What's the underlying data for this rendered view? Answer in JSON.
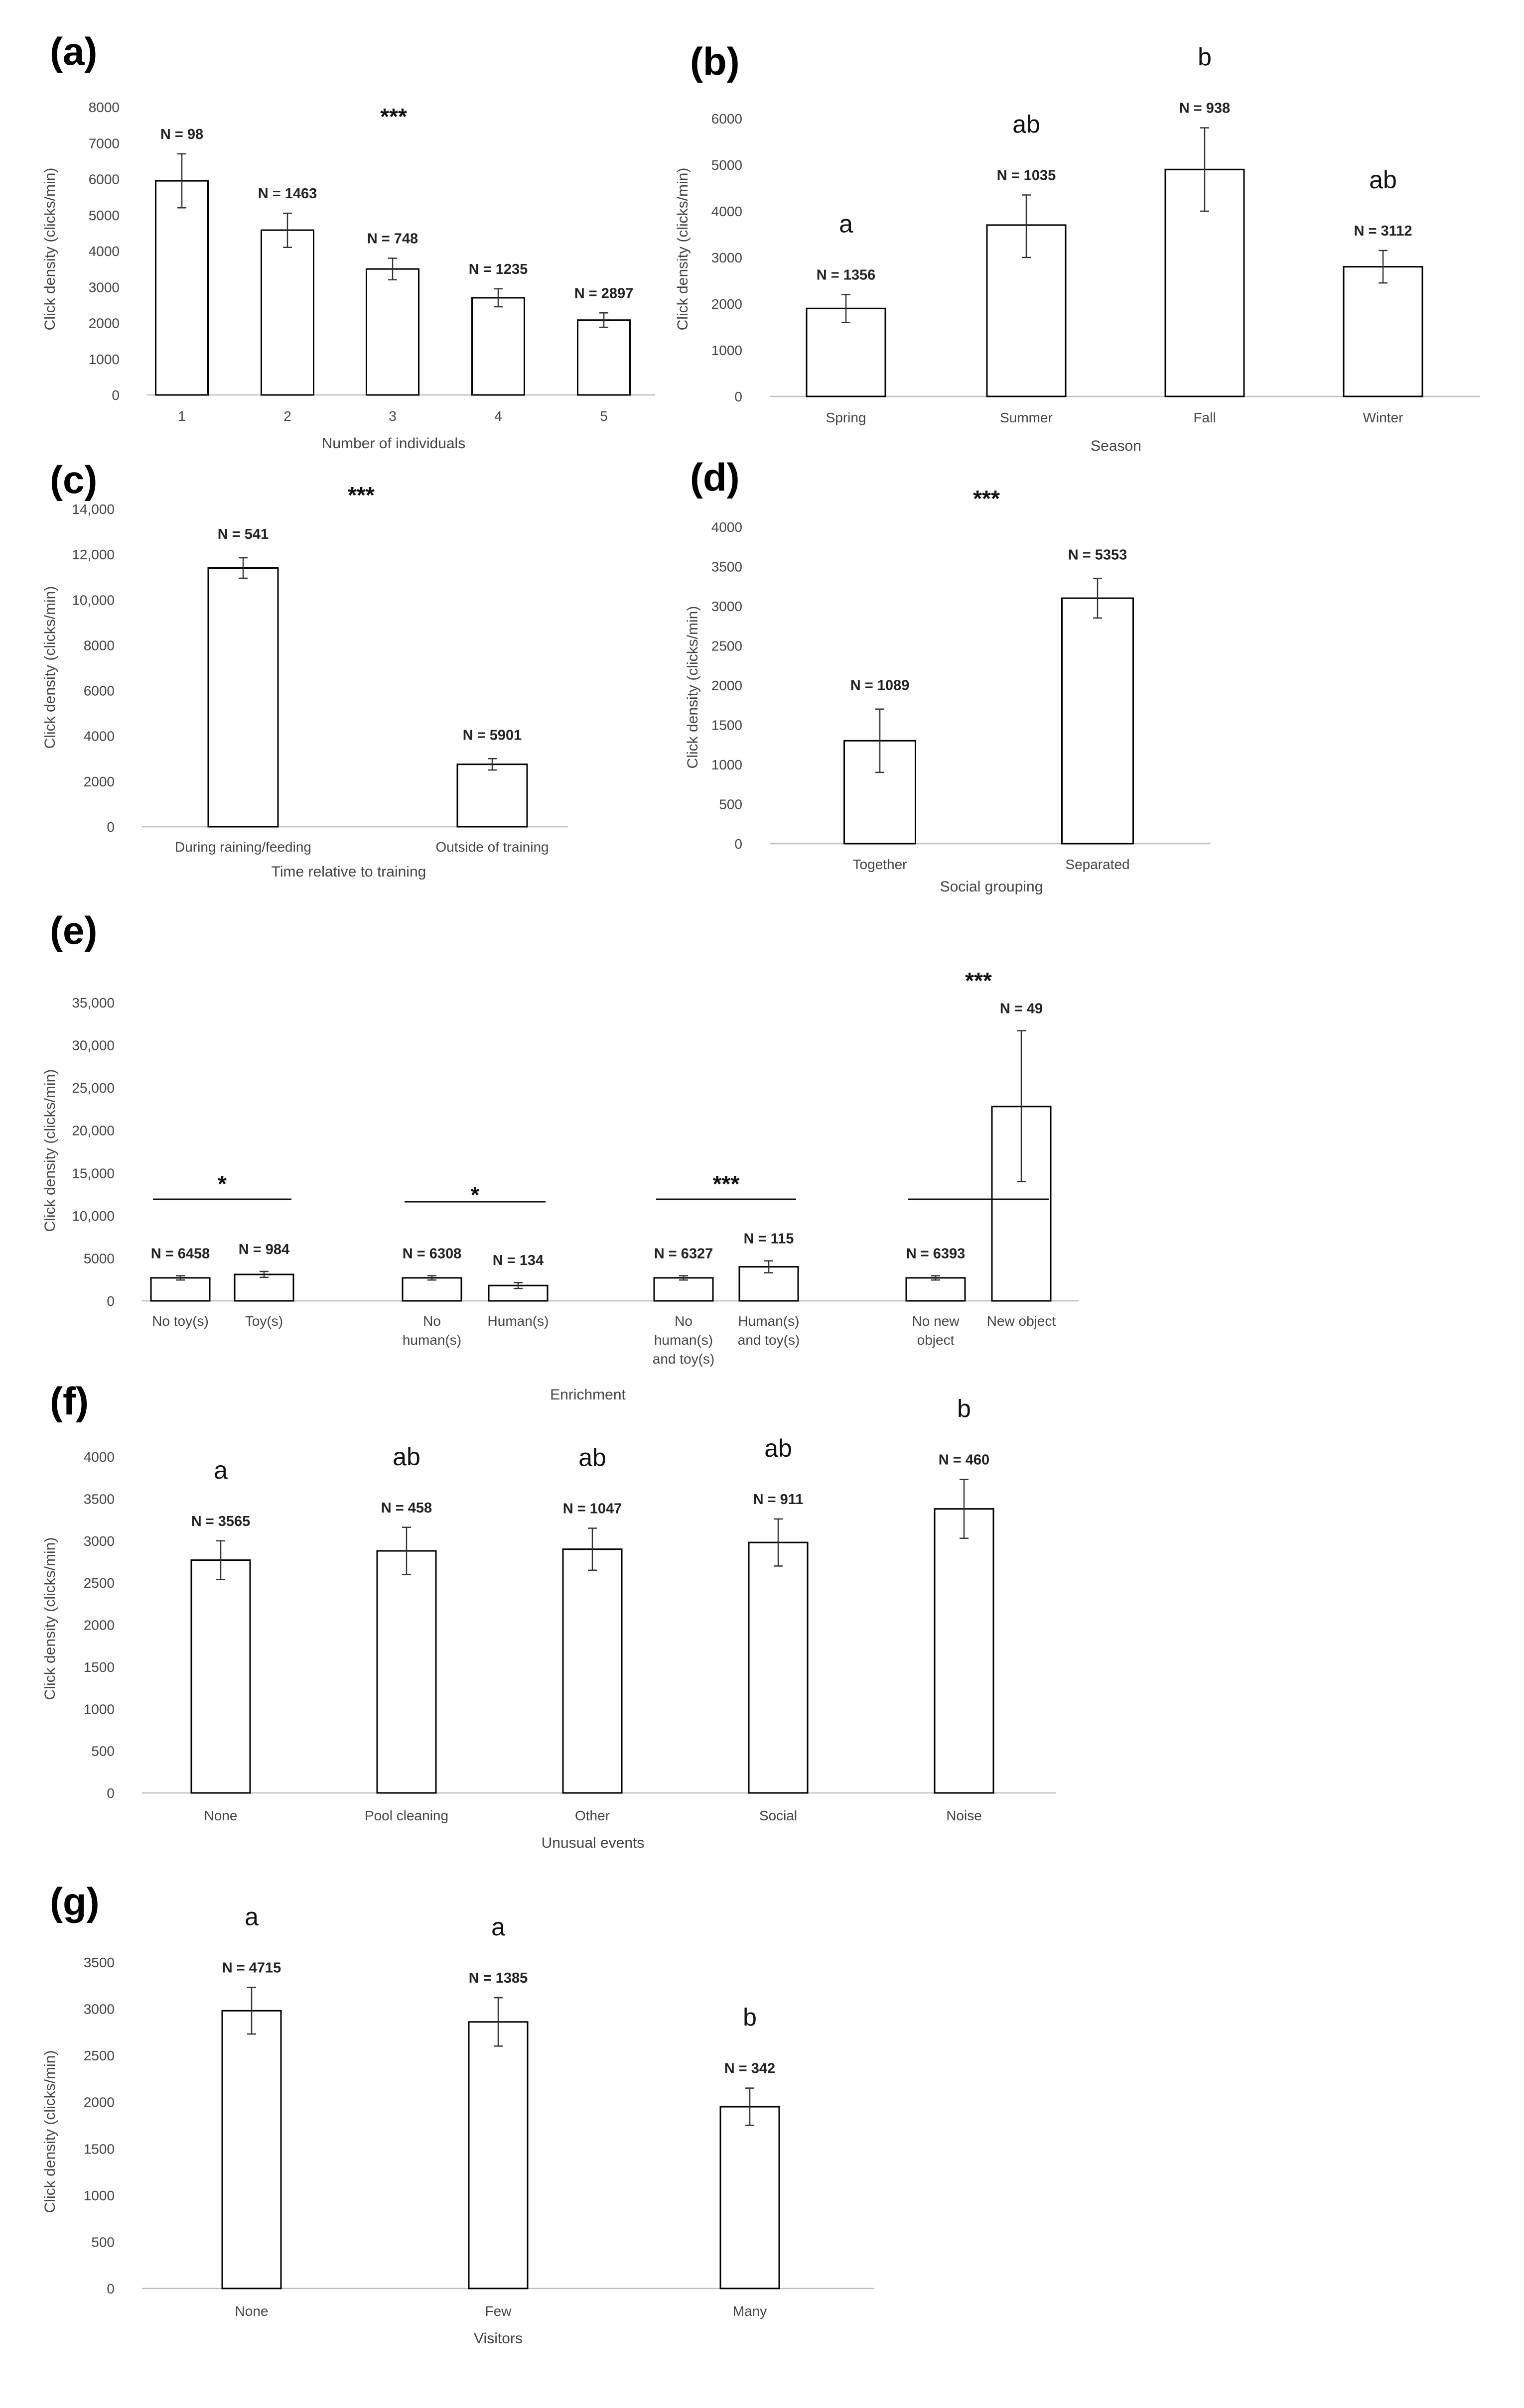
{
  "chart_data": [
    {
      "panel": "(a)",
      "type": "bar",
      "ylabel": "Click density (clicks/min)",
      "xlabel": "Number of individuals",
      "ylim": [
        0,
        8000
      ],
      "yticks": [
        0,
        1000,
        2000,
        3000,
        4000,
        5000,
        6000,
        7000,
        8000
      ],
      "categories": [
        "1",
        "2",
        "3",
        "4",
        "5"
      ],
      "values": [
        5950,
        4580,
        3500,
        2700,
        2080
      ],
      "err_low": [
        5200,
        4100,
        3200,
        2450,
        1880
      ],
      "err_high": [
        6700,
        5050,
        3800,
        2950,
        2280
      ],
      "n_labels": [
        "N = 98",
        "N = 1463",
        "N = 748",
        "N = 1235",
        "N = 2897"
      ],
      "sig_letters": [],
      "stars": [
        {
          "text": "***",
          "from": null,
          "to": null
        }
      ],
      "grid": false,
      "legend": "none"
    },
    {
      "panel": "(b)",
      "type": "bar",
      "ylabel": "Click density (clicks/min)",
      "xlabel": "Season",
      "ylim": [
        0,
        6000
      ],
      "yticks": [
        0,
        1000,
        2000,
        3000,
        4000,
        5000,
        6000
      ],
      "categories": [
        "Spring",
        "Summer",
        "Fall",
        "Winter"
      ],
      "values": [
        1900,
        3700,
        4900,
        2800
      ],
      "err_low": [
        1600,
        3000,
        4000,
        2450
      ],
      "err_high": [
        2200,
        4350,
        5800,
        3150
      ],
      "n_labels": [
        "N = 1356",
        "N = 1035",
        "N = 938",
        "N = 3112"
      ],
      "sig_letters": [
        "a",
        "ab",
        "b",
        "ab"
      ],
      "stars": [],
      "grid": false,
      "legend": "none"
    },
    {
      "panel": "(c)",
      "type": "bar",
      "ylabel": "Click density (clicks/min)",
      "xlabel": "Time relative to training",
      "ylim": [
        0,
        14000
      ],
      "yticks": [
        0,
        2000,
        4000,
        6000,
        8000,
        10000,
        12000,
        14000
      ],
      "ytick_labels": [
        "0",
        "2000",
        "4000",
        "6000",
        "8000",
        "10,000",
        "12,000",
        "14,000"
      ],
      "categories": [
        "During raining/feeding",
        "Outside of training"
      ],
      "values": [
        11400,
        2750
      ],
      "err_low": [
        10950,
        2500
      ],
      "err_high": [
        11850,
        3000
      ],
      "n_labels": [
        "N = 541",
        "N = 5901"
      ],
      "sig_letters": [],
      "stars": [
        {
          "text": "***",
          "from": null,
          "to": null
        }
      ],
      "grid": false,
      "legend": "none"
    },
    {
      "panel": "(d)",
      "type": "bar",
      "ylabel": "Click density (clicks/min)",
      "xlabel": "Social grouping",
      "ylim": [
        0,
        4000
      ],
      "yticks": [
        0,
        500,
        1000,
        1500,
        2000,
        2500,
        3000,
        3500,
        4000
      ],
      "categories": [
        "Together",
        "Separated"
      ],
      "values": [
        1300,
        3100
      ],
      "err_low": [
        900,
        2850
      ],
      "err_high": [
        1700,
        3350
      ],
      "n_labels": [
        "N = 1089",
        "N = 5353"
      ],
      "sig_letters": [],
      "stars": [
        {
          "text": "***",
          "from": null,
          "to": null
        }
      ],
      "grid": false,
      "legend": "none"
    },
    {
      "panel": "(e)",
      "type": "bar",
      "ylabel": "Click density (clicks/min)",
      "xlabel": "Enrichment",
      "ylim": [
        0,
        35000
      ],
      "yticks": [
        0,
        5000,
        10000,
        15000,
        20000,
        25000,
        30000,
        35000
      ],
      "ytick_labels": [
        "0",
        "5000",
        "10,000",
        "15,000",
        "20,000",
        "25,000",
        "30,000",
        "35,000"
      ],
      "categories": [
        "No toy(s)",
        "Toy(s)",
        "No\nhuman(s)",
        "Human(s)",
        "No\nhuman(s)\nand toy(s)",
        "Human(s)\nand toy(s)",
        "No new\nobject",
        "New object"
      ],
      "values": [
        2700,
        3100,
        2700,
        1800,
        2700,
        4000,
        2700,
        22800
      ],
      "err_low": [
        2450,
        2750,
        2450,
        1450,
        2450,
        3300,
        2450,
        14000
      ],
      "err_high": [
        2950,
        3450,
        2950,
        2150,
        2950,
        4700,
        2950,
        31700
      ],
      "n_labels": [
        "N = 6458",
        "N = 984",
        "N = 6308",
        "N = 134",
        "N = 6327",
        "N = 115",
        "N = 6393",
        "N = 49"
      ],
      "sig_letters": [],
      "stars": [
        {
          "text": "*",
          "from": 0,
          "to": 1
        },
        {
          "text": "*",
          "from": 2,
          "to": 3
        },
        {
          "text": "***",
          "from": 4,
          "to": 5
        },
        {
          "text": "***",
          "from": 6,
          "to": 7
        }
      ],
      "grid": false,
      "legend": "none"
    },
    {
      "panel": "(f)",
      "type": "bar",
      "ylabel": "Click density (clicks/min)",
      "xlabel": "Unusual events",
      "ylim": [
        0,
        4000
      ],
      "yticks": [
        0,
        500,
        1000,
        1500,
        2000,
        2500,
        3000,
        3500,
        4000
      ],
      "categories": [
        "None",
        "Pool cleaning",
        "Other",
        "Social",
        "Noise"
      ],
      "values": [
        2770,
        2880,
        2900,
        2980,
        3380
      ],
      "err_low": [
        2540,
        2600,
        2650,
        2700,
        3030
      ],
      "err_high": [
        3000,
        3160,
        3150,
        3260,
        3730
      ],
      "n_labels": [
        "N = 3565",
        "N = 458",
        "N = 1047",
        "N = 911",
        "N = 460"
      ],
      "sig_letters": [
        "a",
        "ab",
        "ab",
        "ab",
        "b"
      ],
      "stars": [],
      "grid": false,
      "legend": "none"
    },
    {
      "panel": "(g)",
      "type": "bar",
      "ylabel": "Click density (clicks/min)",
      "xlabel": "Visitors",
      "ylim": [
        0,
        3500
      ],
      "yticks": [
        0,
        500,
        1000,
        1500,
        2000,
        2500,
        3000,
        3500
      ],
      "categories": [
        "None",
        "Few",
        "Many"
      ],
      "values": [
        2980,
        2860,
        1950
      ],
      "err_low": [
        2730,
        2600,
        1750
      ],
      "err_high": [
        3230,
        3120,
        2150
      ],
      "n_labels": [
        "N = 4715",
        "N = 1385",
        "N = 342"
      ],
      "sig_letters": [
        "a",
        "a",
        "b"
      ],
      "stars": [],
      "grid": false,
      "legend": "none"
    }
  ]
}
